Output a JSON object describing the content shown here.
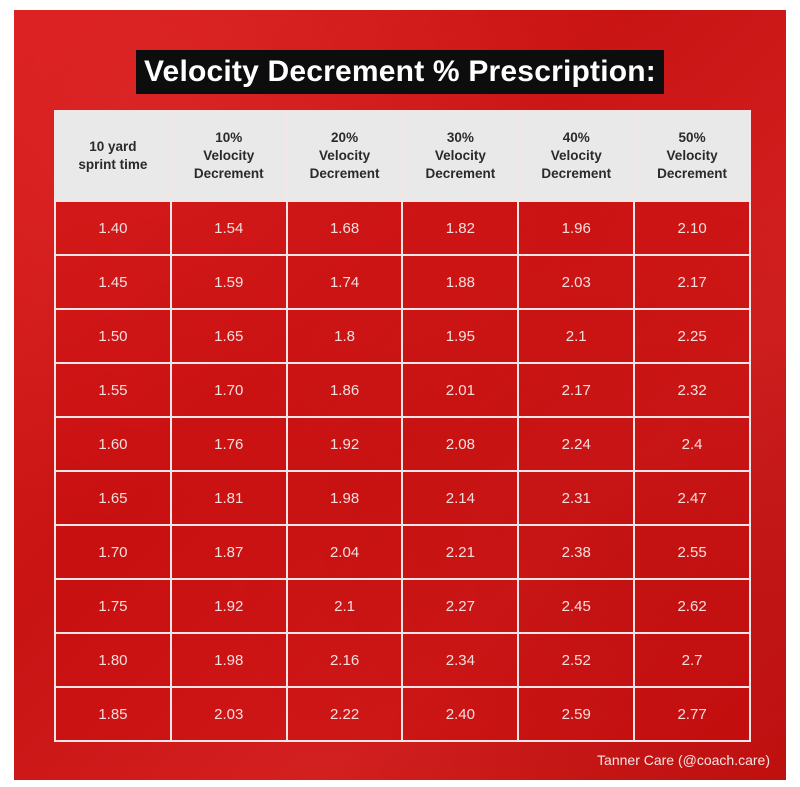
{
  "title": "Velocity Decrement % Prescription:",
  "table": {
    "headers": [
      "10 yard\nsprint time",
      "10%\nVelocity\nDecrement",
      "20%\nVelocity\nDecrement",
      "30%\nVelocity\nDecrement",
      "40%\nVelocity\nDecrement",
      "50%\nVelocity\nDecrement"
    ],
    "rows": [
      [
        "1.40",
        "1.54",
        "1.68",
        "1.82",
        "1.96",
        "2.10"
      ],
      [
        "1.45",
        "1.59",
        "1.74",
        "1.88",
        "2.03",
        "2.17"
      ],
      [
        "1.50",
        "1.65",
        "1.8",
        "1.95",
        "2.1",
        "2.25"
      ],
      [
        "1.55",
        "1.70",
        "1.86",
        "2.01",
        "2.17",
        "2.32"
      ],
      [
        "1.60",
        "1.76",
        "1.92",
        "2.08",
        "2.24",
        "2.4"
      ],
      [
        "1.65",
        "1.81",
        "1.98",
        "2.14",
        "2.31",
        "2.47"
      ],
      [
        "1.70",
        "1.87",
        "2.04",
        "2.21",
        "2.38",
        "2.55"
      ],
      [
        "1.75",
        "1.92",
        "2.1",
        "2.27",
        "2.45",
        "2.62"
      ],
      [
        "1.80",
        "1.98",
        "2.16",
        "2.34",
        "2.52",
        "2.7"
      ],
      [
        "1.85",
        "2.03",
        "2.22",
        "2.40",
        "2.59",
        "2.77"
      ]
    ]
  },
  "credit": "Tanner Care (@coach.care)",
  "colors": {
    "background": "#d41a1a",
    "title_bg": "#0d0d0d",
    "header_bg": "#e9e9e9",
    "grid_lines": "#f3e6e6"
  }
}
